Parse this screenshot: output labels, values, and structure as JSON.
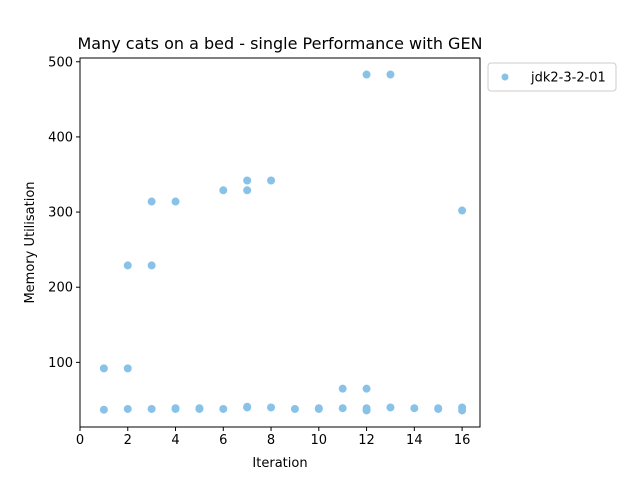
{
  "chart_data": {
    "type": "scatter",
    "title": "Many cats on a bed - single Performance with GEN",
    "xlabel": "Iteration",
    "ylabel": "Memory Utilisation",
    "xlim": [
      0,
      16.75
    ],
    "ylim": [
      14,
      505
    ],
    "xticks": [
      "0",
      "2",
      "4",
      "6",
      "8",
      "10",
      "12",
      "14",
      "16"
    ],
    "yticks": [
      "100",
      "200",
      "300",
      "400",
      "500"
    ],
    "grid": false,
    "legend": "top-right outside plot",
    "series": [
      {
        "name": "jdk2-3-2-01",
        "color": "#89c2e8",
        "x": [
          1,
          1,
          2,
          2,
          2,
          3,
          3,
          3,
          4,
          4,
          4,
          5,
          5,
          6,
          6,
          7,
          7,
          7,
          7,
          8,
          8,
          9,
          10,
          10,
          11,
          11,
          12,
          12,
          12,
          12,
          13,
          13,
          14,
          15,
          15,
          16,
          16,
          16
        ],
        "y": [
          37,
          92,
          38,
          92,
          229,
          38,
          229,
          314,
          38,
          39,
          314,
          38,
          39,
          38,
          329,
          40,
          329,
          342,
          41,
          40,
          342,
          38,
          38,
          39,
          39,
          65,
          36,
          39,
          65,
          483,
          40,
          483,
          39,
          38,
          39,
          36,
          40,
          302
        ]
      }
    ]
  }
}
